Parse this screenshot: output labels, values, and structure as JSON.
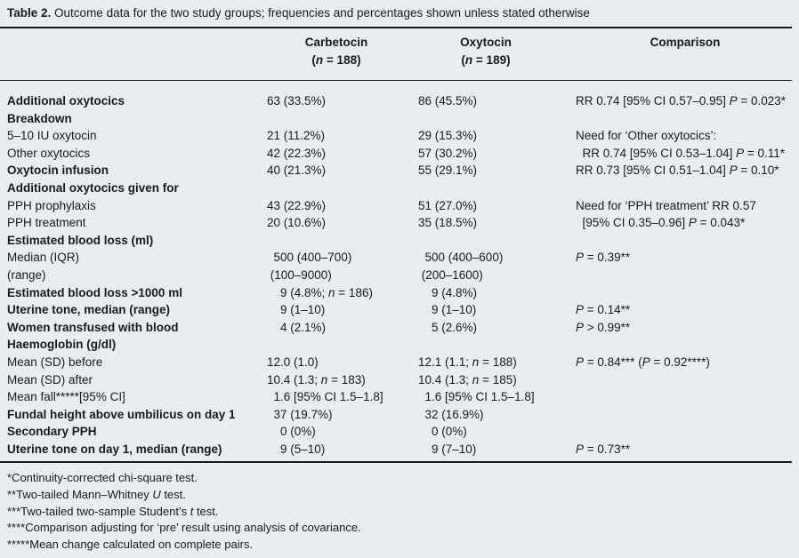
{
  "caption": {
    "label": "Table 2.",
    "text": "Outcome data for the two study groups; frequencies and percentages shown unless stated otherwise"
  },
  "headers": {
    "carbetocin": "Carbetocin",
    "carbetocin_n": "(n = 188)",
    "oxytocin": "Oxytocin",
    "oxytocin_n": "(n = 189)",
    "comparison": "Comparison"
  },
  "rows": [
    {
      "label": "Additional oxytocics",
      "bold": true,
      "carbetocin": "63 (33.5%)",
      "oxytocin": "86 (45.5%)",
      "comparison": "RR 0.74 [95% CI 0.57–0.95] P = 0.023*"
    },
    {
      "label": "Breakdown",
      "bold": true,
      "carbetocin": "",
      "oxytocin": "",
      "comparison": ""
    },
    {
      "label": "5–10 IU oxytocin",
      "bold": false,
      "carbetocin": "21 (11.2%)",
      "oxytocin": "29 (15.3%)",
      "comparison": "Need for ‘Other oxytocics’:"
    },
    {
      "label": "Other oxytocics",
      "bold": false,
      "carbetocin": "42 (22.3%)",
      "oxytocin": "57 (30.2%)",
      "comparison": "  RR 0.74 [95% CI 0.53–1.04] P = 0.11*"
    },
    {
      "label": "Oxytocin infusion",
      "bold": true,
      "carbetocin": "40 (21.3%)",
      "oxytocin": "55 (29.1%)",
      "comparison": "RR 0.73 [95% CI 0.51–1.04] P = 0.10*"
    },
    {
      "label": "Additional oxytocics given for",
      "bold": true,
      "carbetocin": "",
      "oxytocin": "",
      "comparison": ""
    },
    {
      "label": "PPH prophylaxis",
      "bold": false,
      "carbetocin": "43 (22.9%)",
      "oxytocin": "51 (27.0%)",
      "comparison": "Need for ‘PPH treatment’ RR 0.57"
    },
    {
      "label": "PPH treatment",
      "bold": false,
      "carbetocin": "20 (10.6%)",
      "oxytocin": "35 (18.5%)",
      "comparison": "  [95% CI 0.35–0.96] P = 0.043*"
    },
    {
      "label": "Estimated blood loss (ml)",
      "bold": true,
      "carbetocin": "",
      "oxytocin": "",
      "comparison": ""
    },
    {
      "label": "Median (IQR)",
      "bold": false,
      "carbetocin": "  500 (400–700)",
      "oxytocin": "  500 (400–600)",
      "comparison": "P = 0.39**"
    },
    {
      "label": "(range)",
      "bold": false,
      "carbetocin": " (100–9000)",
      "oxytocin": " (200–1600)",
      "comparison": ""
    },
    {
      "label": "Estimated blood loss >1000 ml",
      "bold": true,
      "carbetocin": "    9 (4.8%; n = 186)",
      "oxytocin": "    9 (4.8%)",
      "comparison": ""
    },
    {
      "label": "Uterine tone, median (range)",
      "bold": true,
      "carbetocin": "    9 (1–10)",
      "oxytocin": "    9 (1–10)",
      "comparison": "P = 0.14**"
    },
    {
      "label": "Women transfused with blood",
      "bold": true,
      "carbetocin": "    4 (2.1%)",
      "oxytocin": "    5 (2.6%)",
      "comparison": "P > 0.99**"
    },
    {
      "label": "Haemoglobin (g/dl)",
      "bold": true,
      "carbetocin": "",
      "oxytocin": "",
      "comparison": ""
    },
    {
      "label": "Mean (SD) before",
      "bold": false,
      "carbetocin": "12.0 (1.0)",
      "oxytocin": "12.1 (1.1; n = 188)",
      "comparison": "P = 0.84*** (P = 0.92****)"
    },
    {
      "label": "Mean (SD) after",
      "bold": false,
      "carbetocin": "10.4 (1.3; n = 183)",
      "oxytocin": "10.4 (1.3; n = 185)",
      "comparison": ""
    },
    {
      "label": "Mean fall*****[95% CI]",
      "bold": false,
      "carbetocin": "  1.6 [95% CI 1.5–1.8]",
      "oxytocin": "  1.6 [95% CI 1.5–1.8]",
      "comparison": ""
    },
    {
      "label": "Fundal height above umbilicus on day 1",
      "bold": true,
      "carbetocin": "  37 (19.7%)",
      "oxytocin": "  32 (16.9%)",
      "comparison": ""
    },
    {
      "label": "Secondary PPH",
      "bold": true,
      "carbetocin": "    0 (0%)",
      "oxytocin": "    0 (0%)",
      "comparison": ""
    },
    {
      "label": "Uterine tone on day 1, median (range)",
      "bold": true,
      "carbetocin": "    9 (5–10)",
      "oxytocin": "    9 (7–10)",
      "comparison": "P = 0.73**"
    }
  ],
  "footnotes": [
    "*Continuity-corrected chi-square test.",
    "**Two-tailed Mann–Whitney U test.",
    "***Two-tailed two-sample Student’s t test.",
    "****Comparison adjusting for ‘pre’ result using analysis of covariance.",
    "*****Mean change calculated on complete pairs."
  ]
}
